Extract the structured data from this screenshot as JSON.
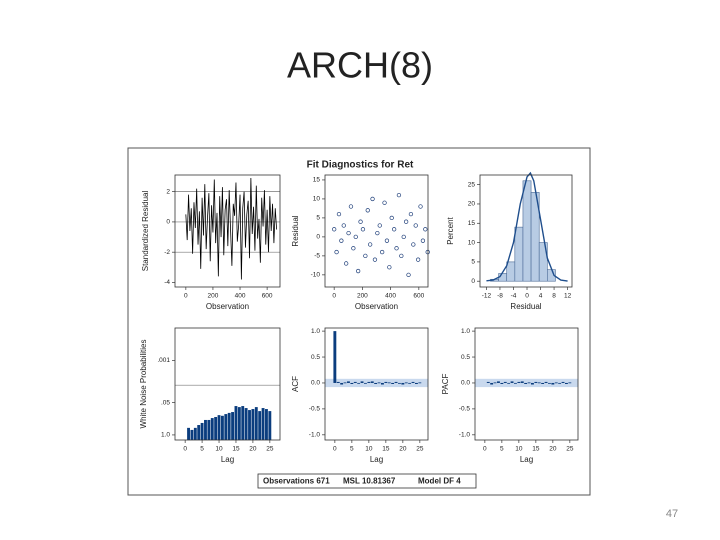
{
  "title": "ARCH(8)",
  "page_number": 47,
  "figure": {
    "title": "Fit Diagnostics for Ret",
    "footer": [
      "Observations 671",
      "MSL 10.81367",
      "Model DF 4"
    ]
  },
  "chart_data": [
    {
      "type": "line",
      "xlabel": "Observation",
      "ylabel": "Standardized Residual",
      "color": "#000000",
      "x": [
        0,
        10,
        20,
        30,
        40,
        50,
        60,
        70,
        80,
        90,
        100,
        110,
        120,
        130,
        140,
        150,
        160,
        170,
        180,
        190,
        200,
        210,
        220,
        230,
        240,
        250,
        260,
        270,
        280,
        290,
        300,
        310,
        320,
        330,
        340,
        350,
        360,
        370,
        380,
        390,
        400,
        410,
        420,
        430,
        440,
        450,
        460,
        470,
        480,
        490,
        500,
        510,
        520,
        530,
        540,
        550,
        560,
        570,
        580,
        590,
        600,
        610,
        620,
        630,
        640,
        650,
        660,
        670
      ],
      "values": [
        0.5,
        -1.2,
        1.8,
        -0.6,
        0.9,
        -2.1,
        1.3,
        -0.4,
        2.2,
        -1.5,
        0.7,
        -3.1,
        1.6,
        -0.9,
        2.5,
        -1.8,
        0.3,
        1.9,
        -2.6,
        1.1,
        -0.7,
        2.8,
        -1.4,
        0.6,
        -3.6,
        1.7,
        -1.0,
        2.3,
        -2.2,
        0.8,
        1.5,
        -1.6,
        2.1,
        -0.5,
        -2.9,
        1.2,
        0.4,
        2.6,
        -1.3,
        -0.2,
        1.8,
        -3.8,
        0.9,
        2.0,
        -1.7,
        0.5,
        1.4,
        -2.4,
        2.9,
        -0.8,
        1.0,
        -1.9,
        2.4,
        -1.1,
        0.2,
        -2.7,
        1.6,
        -0.3,
        2.1,
        -1.5,
        0.8,
        -2.0,
        1.7,
        -0.6,
        1.2,
        -1.4,
        0.9,
        -0.5
      ],
      "xlim": [
        -80,
        695
      ],
      "xticks": [
        0,
        200,
        400,
        600
      ],
      "ylim": [
        -4.3,
        3.1
      ],
      "yticks": [
        -4,
        -2,
        0,
        2
      ],
      "reference_lines": [
        -2,
        0,
        2
      ]
    },
    {
      "type": "scatter",
      "xlabel": "Observation",
      "ylabel": "Residual",
      "color": "#1f3f7a",
      "x": [
        0,
        17,
        34,
        51,
        68,
        85,
        102,
        119,
        136,
        153,
        170,
        187,
        204,
        221,
        238,
        255,
        272,
        289,
        306,
        323,
        340,
        357,
        374,
        391,
        408,
        425,
        442,
        459,
        476,
        493,
        510,
        527,
        544,
        561,
        578,
        595,
        612,
        629,
        646,
        663
      ],
      "values": [
        2,
        -4,
        6,
        -1,
        3,
        -7,
        1,
        8,
        -3,
        0,
        -9,
        4,
        2,
        -5,
        7,
        -2,
        10,
        -6,
        1,
        3,
        -4,
        9,
        -1,
        -8,
        5,
        2,
        -3,
        11,
        -5,
        0,
        4,
        -10,
        6,
        -2,
        3,
        -6,
        8,
        -1,
        2,
        -4
      ],
      "xlim": [
        -65,
        665
      ],
      "xticks": [
        0,
        200,
        400,
        600
      ],
      "ylim": [
        -13.2,
        16.3
      ],
      "yticks": [
        -10,
        -5,
        0,
        5,
        10,
        15
      ]
    },
    {
      "type": "histogram",
      "xlabel": "Residual",
      "ylabel": "Percent",
      "color": "#b8cce4",
      "bins": [
        -10.8,
        -8.4,
        -6,
        -3.6,
        -1.2,
        1.2,
        3.6,
        6,
        8.4
      ],
      "values": [
        0.5,
        2,
        5,
        14,
        26,
        23,
        10,
        3
      ],
      "density": {
        "color": "#1f4e8c",
        "x": [
          -12,
          -10,
          -8,
          -6,
          -4,
          -2,
          0,
          1,
          2,
          4,
          6,
          8,
          10,
          12
        ],
        "values": [
          0.1,
          0.3,
          1.2,
          4,
          10,
          20,
          27,
          28,
          26,
          16,
          6,
          1.5,
          0.3,
          0.05
        ]
      },
      "xlim": [
        -13.9,
        13.3
      ],
      "xticks": [
        -12,
        -8,
        -4,
        0,
        4,
        8,
        12
      ],
      "ylim": [
        -1.5,
        27.5
      ],
      "yticks": [
        0,
        5,
        10,
        15,
        20,
        25
      ]
    },
    {
      "type": "bar",
      "xlabel": "Lag",
      "ylabel": "White Noise Probabilities",
      "color": "#0b3d7e",
      "log_scale": true,
      "x": [
        1,
        2,
        3,
        4,
        5,
        6,
        7,
        8,
        9,
        10,
        11,
        12,
        13,
        14,
        15,
        16,
        17,
        18,
        19,
        20,
        21,
        22,
        23,
        24,
        25
      ],
      "values": [
        0.52,
        0.63,
        0.52,
        0.4,
        0.33,
        0.25,
        0.25,
        0.21,
        0.19,
        0.16,
        0.17,
        0.145,
        0.13,
        0.12,
        0.069,
        0.076,
        0.069,
        0.083,
        0.1,
        0.091,
        0.076,
        0.11,
        0.083,
        0.091,
        0.11
      ],
      "xlim": [
        -3,
        28
      ],
      "xticks": [
        0,
        5,
        10,
        15,
        20,
        25
      ],
      "ylim": [
        1.6,
        5e-05
      ],
      "yticks": [
        {
          "value": 0.001,
          "label": ".001"
        },
        {
          "value": 0.05,
          "label": ".05"
        },
        {
          "value": 1,
          "label": "1.0"
        }
      ],
      "reference_lines": [
        0.01
      ]
    },
    {
      "type": "bar",
      "xlabel": "Lag",
      "ylabel": "ACF",
      "color": "#0b3d7e",
      "band": 0.08,
      "band_color": "#c9d9ee",
      "x": [
        0,
        1,
        2,
        3,
        4,
        5,
        6,
        7,
        8,
        9,
        10,
        11,
        12,
        13,
        14,
        15,
        16,
        17,
        18,
        19,
        20,
        21,
        22,
        23,
        24,
        25
      ],
      "values": [
        1,
        0.02,
        -0.03,
        0.01,
        0.03,
        -0.02,
        0.02,
        0.0,
        0.03,
        -0.01,
        0.02,
        0.03,
        -0.02,
        0.01,
        -0.03,
        0.02,
        0.01,
        -0.02,
        0.02,
        0.0,
        -0.03,
        0.01,
        -0.01,
        0.02,
        -0.02,
        0.01
      ],
      "xlim": [
        -2.9,
        27.4
      ],
      "xticks": [
        0,
        5,
        10,
        15,
        20,
        25
      ],
      "ylim": [
        -1.1,
        1.06
      ],
      "yticks": [
        {
          "value": -1,
          "label": "-1.0"
        },
        -0.5,
        {
          "value": 0,
          "label": "0.0"
        },
        0.5,
        {
          "value": 1,
          "label": "1.0"
        }
      ]
    },
    {
      "type": "bar",
      "xlabel": "Lag",
      "ylabel": "PACF",
      "color": "#0b3d7e",
      "band": 0.08,
      "band_color": "#c9d9ee",
      "x": [
        1,
        2,
        3,
        4,
        5,
        6,
        7,
        8,
        9,
        10,
        11,
        12,
        13,
        14,
        15,
        16,
        17,
        18,
        19,
        20,
        21,
        22,
        23,
        24,
        25
      ],
      "values": [
        0.02,
        -0.03,
        0.01,
        0.03,
        -0.02,
        0.02,
        0.0,
        0.03,
        -0.01,
        0.02,
        0.03,
        -0.02,
        0.01,
        -0.03,
        0.02,
        0.01,
        -0.02,
        0.02,
        0.0,
        -0.03,
        0.01,
        -0.01,
        0.02,
        -0.02,
        0.01
      ],
      "xlim": [
        -2.9,
        27.4
      ],
      "xticks": [
        0,
        5,
        10,
        15,
        20,
        25
      ],
      "ylim": [
        -1.1,
        1.06
      ],
      "yticks": [
        {
          "value": -1,
          "label": "-1.0"
        },
        -0.5,
        {
          "value": 0,
          "label": "0.0"
        },
        0.5,
        {
          "value": 1,
          "label": "1.0"
        }
      ]
    }
  ]
}
